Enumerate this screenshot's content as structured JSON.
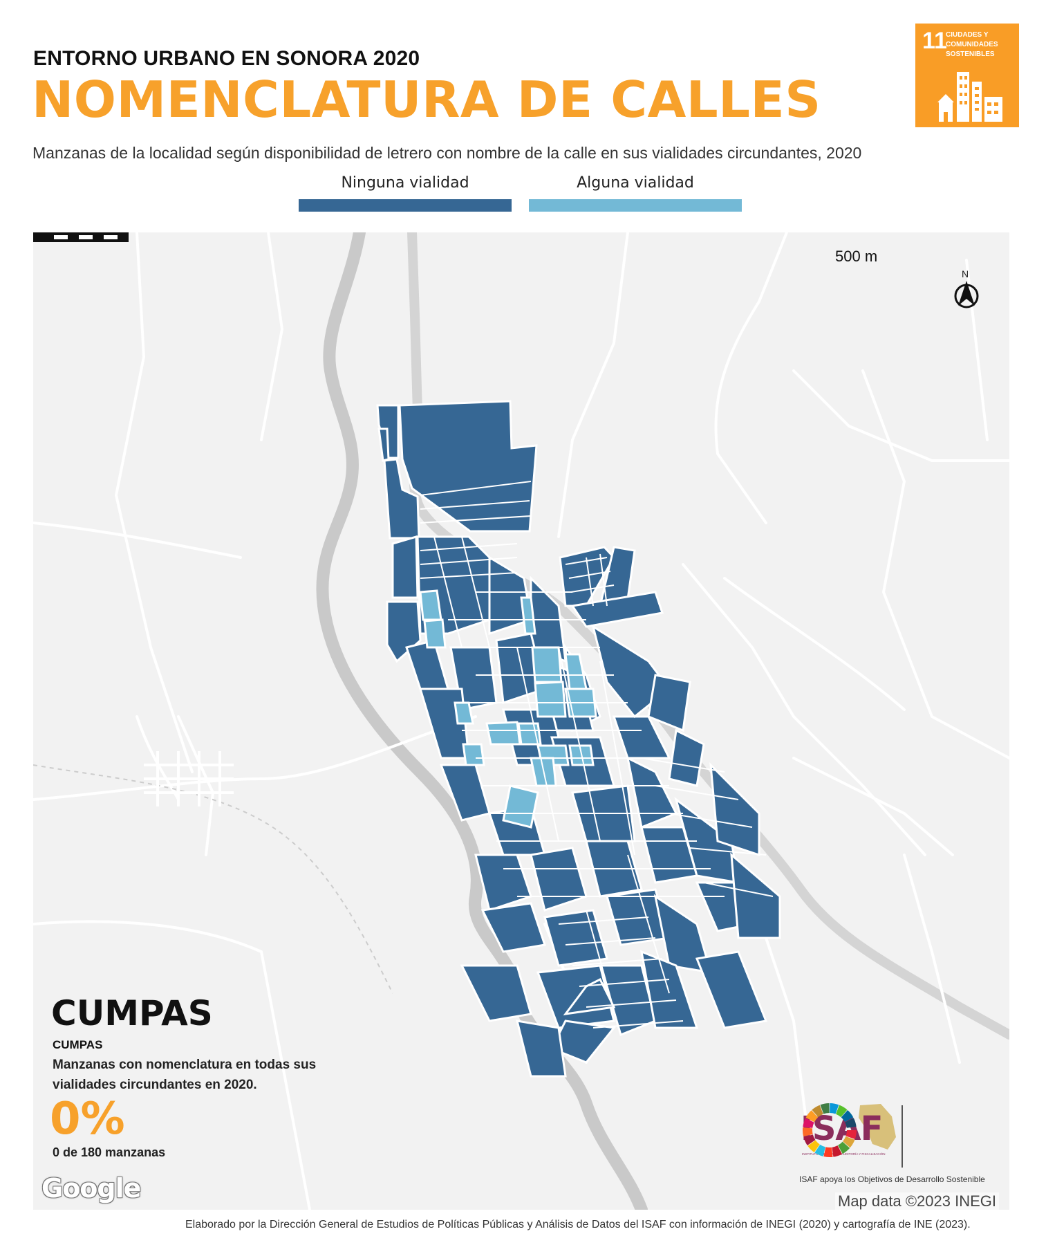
{
  "header": {
    "subtitle": "ENTORNO URBANO EN SONORA 2020",
    "title": "NOMENCLATURA DE CALLES",
    "description": "Manzanas de la localidad según disponibilidad de letrero con nombre de la calle en sus vialidades circundantes, 2020"
  },
  "sdg_badge": {
    "number": "11",
    "label": "CIUDADES Y COMUNIDADES SOSTENIBLES",
    "color": "#f99d26"
  },
  "legend": [
    {
      "label": "Ninguna vialidad",
      "color": "#366794"
    },
    {
      "label": "Alguna vialidad",
      "color": "#73b9d6"
    }
  ],
  "map": {
    "scale_label": "500 m",
    "north_label": "N",
    "attribution": "Map data ©2023 INEGI",
    "provider_logo": "Google"
  },
  "locality": {
    "name_big": "CUMPAS",
    "name_small": "CUMPAS",
    "description": "Manzanas con nomenclatura en todas sus vialidades circundantes en 2020.",
    "percentage": "0%",
    "count_text": "0 de 180 manzanas",
    "percentage_color": "#f7a12b"
  },
  "isaf": {
    "logo_text": "ISAF",
    "logo_subtext": "INSTITUTO SUPERIOR DE AUDITORÍA Y FISCALIZACIÓN",
    "caption": "ISAF apoya los Objetivos de Desarrollo Sostenible"
  },
  "footer": "Elaborado por la Dirección General de Estudios de Políticas Públicas y Análisis de Datos del ISAF con información de INEGI (2020) y cartografía de INE (2023)."
}
